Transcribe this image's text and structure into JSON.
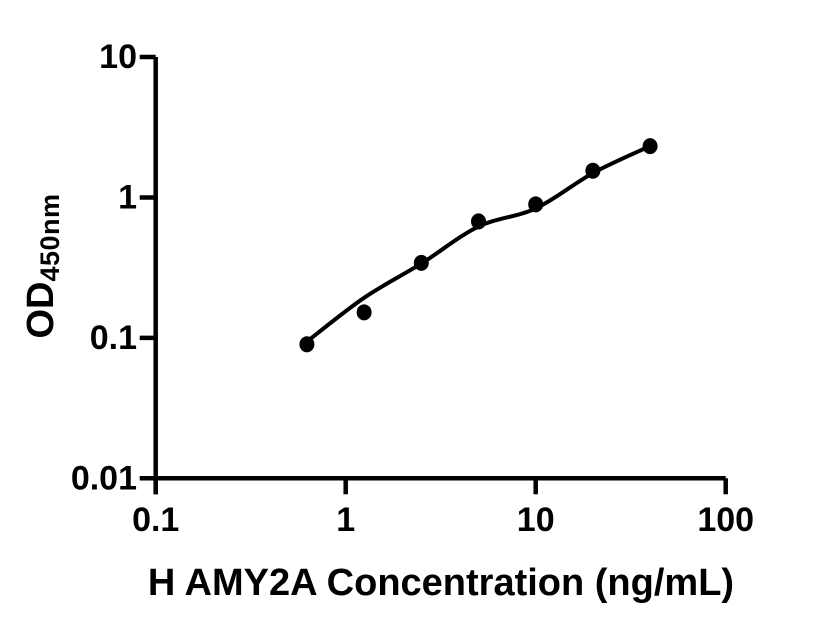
{
  "figure": {
    "background": "#ffffff",
    "ink_color": "#000000"
  },
  "chart_data": {
    "type": "scatter",
    "title": "",
    "xlabel": "H AMY2A Concentration (ng/mL)",
    "ylabel_main": "OD",
    "ylabel_sub": "450nm",
    "x_scale": "log",
    "y_scale": "log",
    "xlim": [
      0.1,
      100
    ],
    "ylim": [
      0.01,
      10
    ],
    "grid": false,
    "legend": false,
    "marker": {
      "shape": "circle",
      "color": "#000000"
    },
    "line_color": "#000000",
    "x_ticks": [
      {
        "v": 0.1,
        "label": "0.1"
      },
      {
        "v": 1,
        "label": "1"
      },
      {
        "v": 10,
        "label": "10"
      },
      {
        "v": 100,
        "label": "100"
      }
    ],
    "y_ticks": [
      {
        "v": 10,
        "label": "10"
      },
      {
        "v": 1,
        "label": "1"
      },
      {
        "v": 0.1,
        "label": "0.1"
      },
      {
        "v": 0.01,
        "label": "0.01"
      }
    ],
    "points": [
      {
        "x": 0.625,
        "y": 0.09
      },
      {
        "x": 1.25,
        "y": 0.152
      },
      {
        "x": 2.5,
        "y": 0.342
      },
      {
        "x": 5,
        "y": 0.675
      },
      {
        "x": 10,
        "y": 0.893
      },
      {
        "x": 20,
        "y": 1.55
      },
      {
        "x": 40,
        "y": 2.32
      }
    ],
    "fit_curve": [
      {
        "x": 0.625,
        "y": 0.094
      },
      {
        "x": 1.25,
        "y": 0.193
      },
      {
        "x": 2.5,
        "y": 0.338
      },
      {
        "x": 5,
        "y": 0.62
      },
      {
        "x": 10,
        "y": 0.835
      },
      {
        "x": 20,
        "y": 1.49
      },
      {
        "x": 40,
        "y": 2.32
      }
    ]
  }
}
